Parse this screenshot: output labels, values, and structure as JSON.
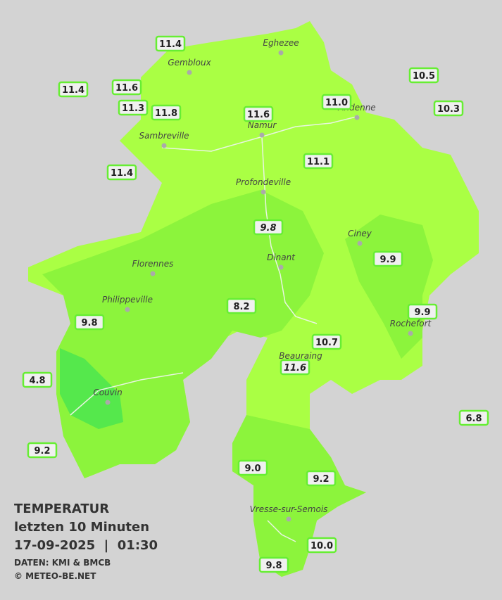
{
  "legend_block": {
    "title": "TEMPERATUR",
    "subtitle": "letzten 10 Minuten",
    "timestamp": "17-09-2025  |  01:30",
    "source": "DATEN: KMI & BMCB",
    "copyright": "© METEO-BE.NET"
  },
  "cities": [
    {
      "name": "Eghezee"
    },
    {
      "name": "Gembloux"
    },
    {
      "name": "Andenne"
    },
    {
      "name": "Namur"
    },
    {
      "name": "Sambreville"
    },
    {
      "name": "Profondeville"
    },
    {
      "name": "Ciney"
    },
    {
      "name": "Dinant"
    },
    {
      "name": "Florennes"
    },
    {
      "name": "Philippeville"
    },
    {
      "name": "Rochefort"
    },
    {
      "name": "Beauraing"
    },
    {
      "name": "Couvin"
    },
    {
      "name": "Vresse-sur-Semois"
    }
  ],
  "stations": [
    {
      "value": "11.4"
    },
    {
      "value": "11.4"
    },
    {
      "value": "11.6"
    },
    {
      "value": "11.3"
    },
    {
      "value": "11.8"
    },
    {
      "value": "11.6"
    },
    {
      "value": "11.0"
    },
    {
      "value": "10.5"
    },
    {
      "value": "10.3"
    },
    {
      "value": "11.4"
    },
    {
      "value": "11.1"
    },
    {
      "value": "9.8",
      "style": "italic"
    },
    {
      "value": "9.9"
    },
    {
      "value": "8.2"
    },
    {
      "value": "9.9"
    },
    {
      "value": "9.8"
    },
    {
      "value": "10.7"
    },
    {
      "value": "11.6",
      "style": "italic"
    },
    {
      "value": "4.8"
    },
    {
      "value": "6.8"
    },
    {
      "value": "9.2"
    },
    {
      "value": "9.0"
    },
    {
      "value": "9.2"
    },
    {
      "value": "10.0"
    },
    {
      "value": "9.8"
    }
  ]
}
